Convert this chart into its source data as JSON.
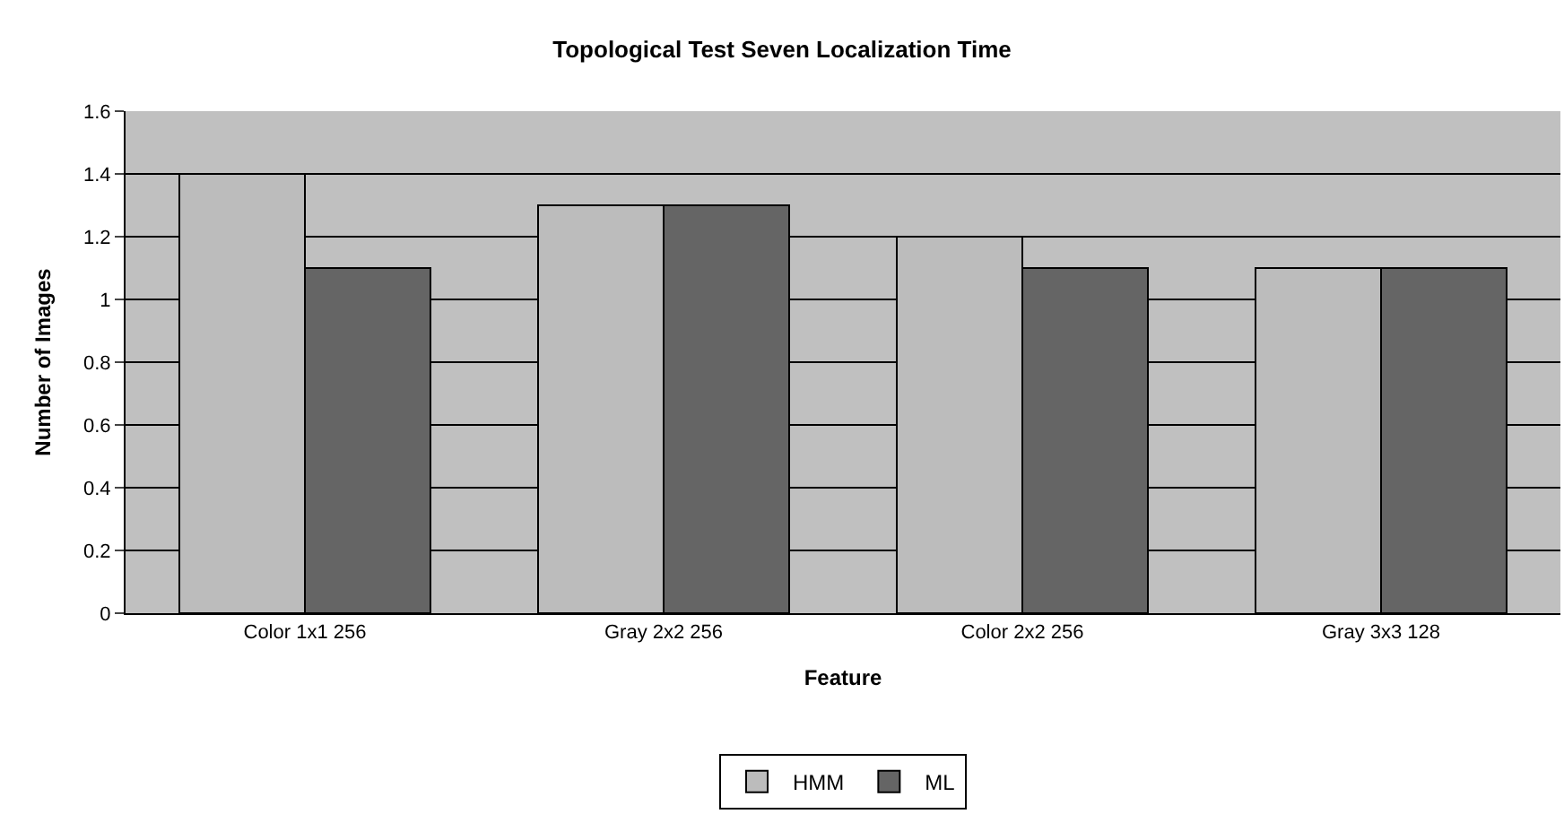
{
  "chart_data": {
    "type": "bar",
    "title": "Topological Test Seven Localization Time",
    "xlabel": "Feature",
    "ylabel": "Number of Images",
    "categories": [
      "Color 1x1 256",
      "Gray 2x2 256",
      "Color 2x2 256",
      "Gray 3x3 128"
    ],
    "series": [
      {
        "name": "HMM",
        "color": "#bcbcbc",
        "values": [
          1.4,
          1.3,
          1.2,
          1.1
        ]
      },
      {
        "name": "ML",
        "color": "#656565",
        "values": [
          1.1,
          1.3,
          1.1,
          1.1
        ]
      }
    ],
    "ylim": [
      0,
      1.6
    ],
    "yticks": [
      0,
      0.2,
      0.4,
      0.6,
      0.8,
      1,
      1.2,
      1.4,
      1.6
    ],
    "grid": "y",
    "legend": "bottom"
  }
}
